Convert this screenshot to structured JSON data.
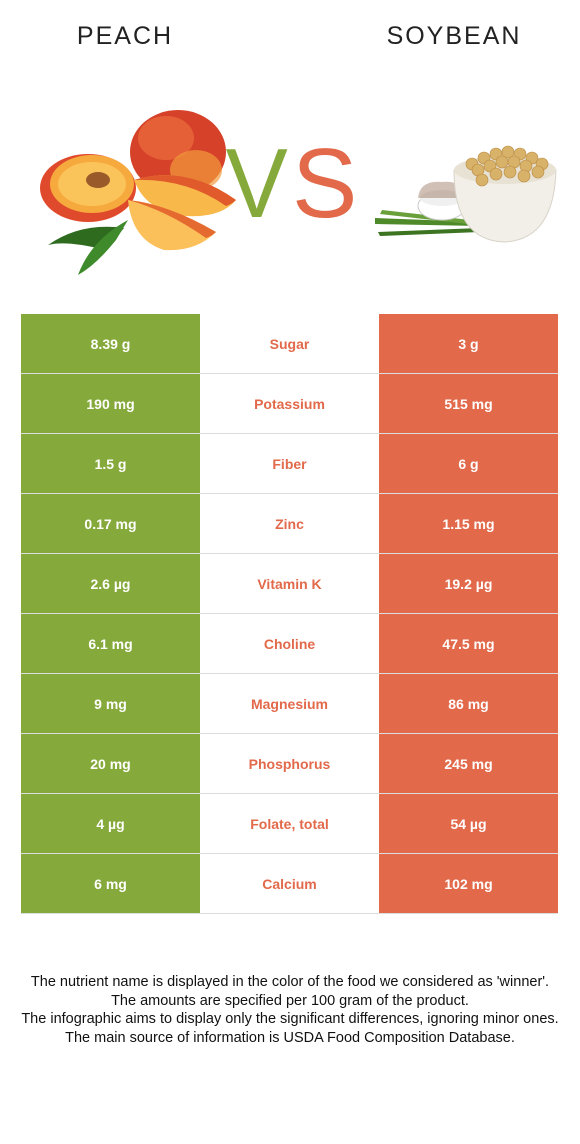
{
  "header": {
    "left_food": "PEACH",
    "right_food": "SOYBEAN",
    "vs_v": "V",
    "vs_s": "S"
  },
  "colors": {
    "left_winner": "#86a93b",
    "right_winner": "#e2694a"
  },
  "rows": [
    {
      "nutrient": "Sugar",
      "left": "8.39 g",
      "right": "3 g"
    },
    {
      "nutrient": "Potassium",
      "left": "190 mg",
      "right": "515 mg"
    },
    {
      "nutrient": "Fiber",
      "left": "1.5 g",
      "right": "6 g"
    },
    {
      "nutrient": "Zinc",
      "left": "0.17 mg",
      "right": "1.15 mg"
    },
    {
      "nutrient": "Vitamin K",
      "left": "2.6 µg",
      "right": "19.2 µg"
    },
    {
      "nutrient": "Choline",
      "left": "6.1 mg",
      "right": "47.5 mg"
    },
    {
      "nutrient": "Magnesium",
      "left": "9 mg",
      "right": "86 mg"
    },
    {
      "nutrient": "Phosphorus",
      "left": "20 mg",
      "right": "245 mg"
    },
    {
      "nutrient": "Folate, total",
      "left": "4 µg",
      "right": "54 µg"
    },
    {
      "nutrient": "Calcium",
      "left": "6 mg",
      "right": "102 mg"
    }
  ],
  "footer": {
    "line1": "The nutrient name is displayed in the color of the food we considered as 'winner'.",
    "line2": "The amounts are specified per 100 gram of the product.",
    "line3": "The infographic aims to display only the significant differences, ignoring minor ones.",
    "line4": "The main source of information is USDA Food Composition Database."
  }
}
